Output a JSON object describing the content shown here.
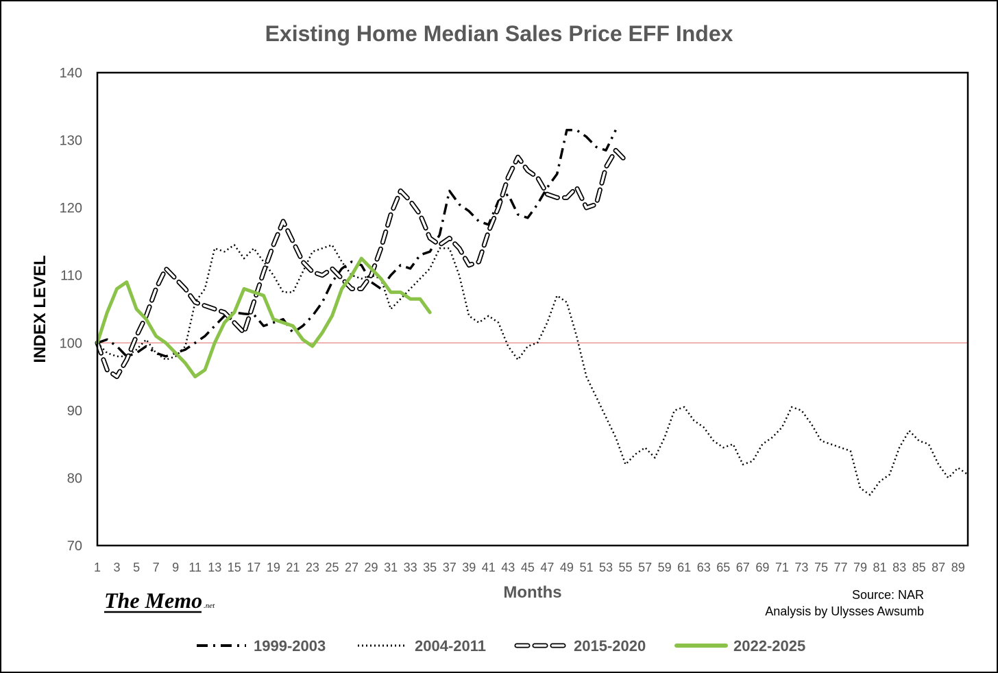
{
  "logo": {
    "name": "The Memo",
    "suffix": ".net"
  },
  "source": {
    "line1": "Source: NAR",
    "line2": "Analysis by Ulysses Awsumb"
  },
  "chart_data": {
    "type": "line",
    "title": "Existing Home Median Sales Price EFF  Index",
    "xlabel": "Months",
    "ylabel": "INDEX LEVEL",
    "xlim": [
      1,
      90
    ],
    "ylim": [
      70,
      140
    ],
    "yticks": [
      70,
      80,
      90,
      100,
      110,
      120,
      130,
      140
    ],
    "xticks": [
      1,
      3,
      5,
      7,
      9,
      11,
      13,
      15,
      17,
      19,
      21,
      23,
      25,
      27,
      29,
      31,
      33,
      35,
      37,
      39,
      41,
      43,
      45,
      47,
      49,
      51,
      53,
      55,
      57,
      59,
      61,
      63,
      65,
      67,
      69,
      71,
      73,
      75,
      77,
      79,
      81,
      83,
      85,
      87,
      89
    ],
    "reference_line": {
      "y": 100,
      "color": "#e06666"
    },
    "legend_position": "bottom",
    "series": [
      {
        "name": "1999-2003",
        "style": "dash-dot",
        "color": "#000000",
        "values": [
          100,
          100.5,
          99.5,
          98,
          98.5,
          99.5,
          98.5,
          98,
          98.5,
          99,
          100,
          101,
          102.5,
          104,
          104.5,
          104.3,
          104.2,
          102.5,
          103,
          103.5,
          101.5,
          102.5,
          104,
          106,
          109,
          111,
          112,
          111.5,
          109,
          108,
          110,
          111.5,
          111,
          113,
          113.5,
          116,
          122.5,
          120.5,
          119.5,
          118,
          117.5,
          121,
          122,
          119,
          118.5,
          120.5,
          123,
          125,
          131.5,
          131.5,
          130.5,
          129,
          128.5,
          131.5
        ]
      },
      {
        "name": "2004-2011",
        "style": "dotted",
        "color": "#000000",
        "values": [
          100,
          98.5,
          98,
          98,
          99,
          100.5,
          98.5,
          97.5,
          98,
          99.5,
          106,
          108,
          114,
          113.5,
          114.5,
          112.5,
          114,
          112,
          110,
          107.5,
          107.5,
          110.5,
          113.5,
          114,
          114.5,
          112,
          110,
          109.5,
          110,
          109.5,
          105,
          106.5,
          108,
          109.5,
          111,
          114,
          114,
          110,
          104,
          103,
          104,
          103,
          99.5,
          97.5,
          99.5,
          100,
          103,
          107,
          106,
          101,
          95,
          92,
          89,
          86,
          82,
          83.5,
          84.5,
          83,
          86,
          90,
          90.5,
          88.5,
          87.5,
          85.5,
          84.5,
          85,
          82,
          82.5,
          85,
          86,
          87.5,
          90.5,
          90,
          88,
          85.5,
          85,
          84.5,
          84,
          78.5,
          77.5,
          79.5,
          80.5,
          84.5,
          87,
          85.5,
          85,
          82,
          80,
          81.5,
          80.5
        ]
      },
      {
        "name": "2015-2020",
        "style": "long-dash",
        "color": "#000000",
        "values": [
          100,
          96,
          95,
          97.5,
          101,
          104,
          108,
          111,
          109.5,
          108,
          106,
          105.5,
          105,
          104.5,
          103,
          101.5,
          106,
          110.5,
          114.5,
          118,
          115,
          112,
          110.5,
          110,
          111,
          109.5,
          108,
          108,
          110,
          114,
          119,
          122.5,
          121,
          119,
          115.5,
          114.5,
          115.5,
          114,
          111.5,
          112,
          116.5,
          120,
          124.5,
          127.5,
          125.5,
          124.5,
          122,
          121.5,
          121.5,
          123,
          120,
          120.5,
          126,
          128.5,
          127
        ]
      },
      {
        "name": "2022-2025",
        "style": "solid",
        "color": "#8bc34a",
        "values": [
          100,
          104.5,
          108,
          109,
          105,
          103.5,
          101,
          100,
          98.5,
          97,
          95,
          96,
          100,
          103,
          104.5,
          108,
          107.5,
          107,
          103.5,
          103,
          102.5,
          100.5,
          99.5,
          101.5,
          104,
          108,
          110,
          112.5,
          111,
          109.5,
          107.5,
          107.5,
          106.5,
          106.5,
          104.5
        ]
      }
    ]
  }
}
